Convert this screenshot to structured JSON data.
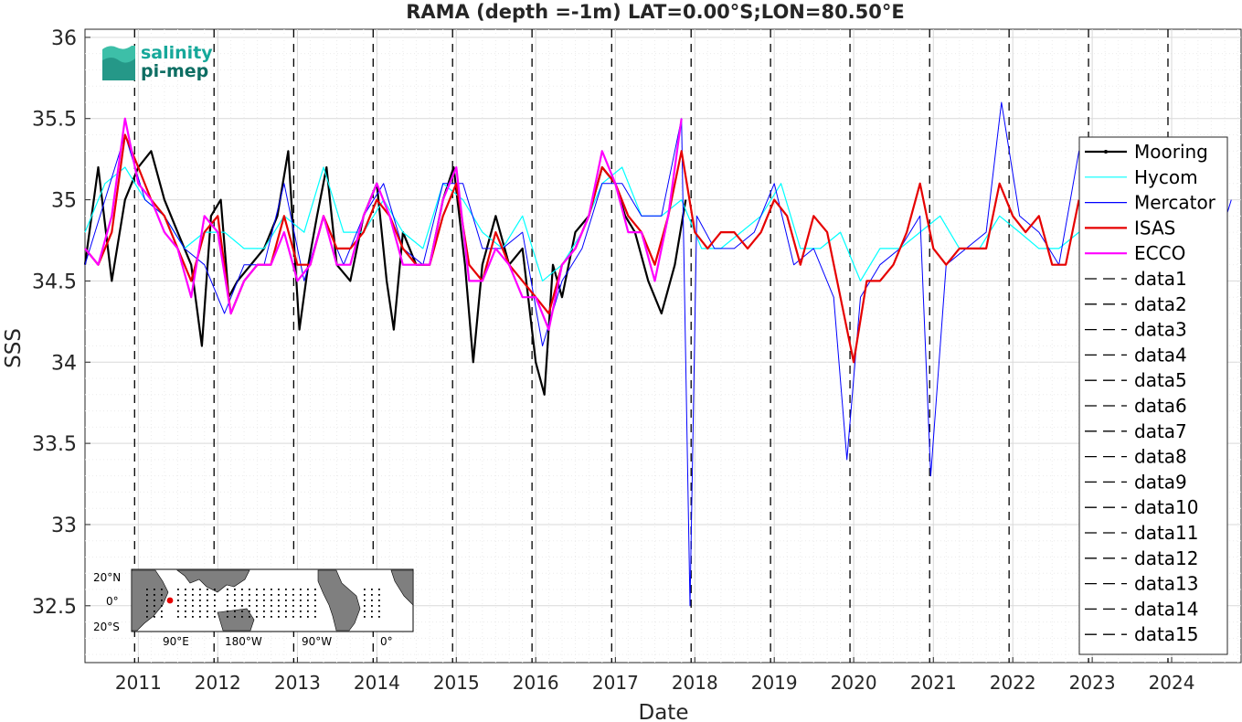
{
  "chart_data": {
    "type": "line",
    "title": "RAMA (depth =-1m) LAT=0.00°S;LON=80.50°E",
    "xlabel": "Date",
    "ylabel": "SSS",
    "xlim": [
      "2010-05-01",
      "2024-11-15"
    ],
    "ylim": [
      32.15,
      36.05
    ],
    "x_ticks": [
      "2011",
      "2012",
      "2013",
      "2014",
      "2015",
      "2016",
      "2017",
      "2018",
      "2019",
      "2020",
      "2021",
      "2022",
      "2023",
      "2024"
    ],
    "y_ticks": [
      "36",
      "35.5",
      "35",
      "34.5",
      "34",
      "33.5",
      "33",
      "32.5"
    ],
    "grid": true,
    "legend_position": "right",
    "vertical_markers": [
      {
        "name": "data1",
        "x": "2010-12-15"
      },
      {
        "name": "data2",
        "x": "2011-12-15"
      },
      {
        "name": "data3",
        "x": "2012-12-15"
      },
      {
        "name": "data4",
        "x": "2013-12-15"
      },
      {
        "name": "data5",
        "x": "2014-12-15"
      },
      {
        "name": "data6",
        "x": "2015-12-15"
      },
      {
        "name": "data7",
        "x": "2016-12-15"
      },
      {
        "name": "data8",
        "x": "2017-12-15"
      },
      {
        "name": "data9",
        "x": "2018-12-15"
      },
      {
        "name": "data10",
        "x": "2019-12-15"
      },
      {
        "name": "data11",
        "x": "2020-12-15"
      },
      {
        "name": "data12",
        "x": "2021-12-15"
      },
      {
        "name": "data13",
        "x": "2022-12-15"
      },
      {
        "name": "data14",
        "x": "2023-12-15"
      },
      {
        "name": "data15",
        "x": "2024-12-15"
      }
    ],
    "series": [
      {
        "name": "Mooring",
        "color": "#000000",
        "width": 2.2,
        "x": [
          "2010-05-01",
          "2010-07-01",
          "2010-09-01",
          "2010-11-01",
          "2011-01-01",
          "2011-03-01",
          "2011-05-01",
          "2011-07-01",
          "2011-09-01",
          "2011-10-20",
          "2011-12-01",
          "2012-01-15",
          "2012-02-20",
          "2012-04-01",
          "2012-06-01",
          "2012-08-01",
          "2012-10-01",
          "2012-11-20",
          "2013-01-10",
          "2013-02-20",
          "2013-04-01",
          "2013-05-15",
          "2013-07-01",
          "2013-09-01",
          "2013-11-01",
          "2014-01-01",
          "2014-02-15",
          "2014-03-20",
          "2014-05-01",
          "2014-07-01",
          "2014-09-01",
          "2014-11-01",
          "2014-12-20",
          "2015-02-10",
          "2015-03-20",
          "2015-05-01",
          "2015-07-01",
          "2015-09-01",
          "2015-11-01",
          "2016-01-01",
          "2016-02-10",
          "2016-03-20",
          "2016-05-01",
          "2016-07-01",
          "2016-09-01",
          "2016-11-01",
          "2017-01-01",
          "2017-02-15",
          "2017-04-01",
          "2017-06-01",
          "2017-08-01",
          "2017-10-01",
          "2017-11-20"
        ],
        "y": [
          34.6,
          35.2,
          34.5,
          35.0,
          35.2,
          35.3,
          35.0,
          34.8,
          34.6,
          34.1,
          34.9,
          35.0,
          34.4,
          34.5,
          34.6,
          34.7,
          34.9,
          35.3,
          34.2,
          34.6,
          34.9,
          35.2,
          34.6,
          34.5,
          34.9,
          35.1,
          34.5,
          34.2,
          34.8,
          34.6,
          34.6,
          35.0,
          35.2,
          34.6,
          34.0,
          34.6,
          34.9,
          34.6,
          34.7,
          34.0,
          33.8,
          34.6,
          34.4,
          34.8,
          34.9,
          35.2,
          35.1,
          34.9,
          34.8,
          34.5,
          34.3,
          34.6,
          35.0
        ]
      },
      {
        "name": "Hycom",
        "color": "#00ffff",
        "width": 1.2,
        "x": [
          "2010-05-01",
          "2010-08-01",
          "2010-11-01",
          "2011-02-01",
          "2011-05-01",
          "2011-08-01",
          "2011-11-01",
          "2012-02-01",
          "2012-05-01",
          "2012-08-01",
          "2012-11-01",
          "2013-02-01",
          "2013-05-01",
          "2013-08-01",
          "2013-11-01",
          "2014-02-01",
          "2014-05-01",
          "2014-08-01",
          "2014-11-01",
          "2015-02-01",
          "2015-05-01",
          "2015-08-01",
          "2015-11-01",
          "2016-02-01",
          "2016-05-01",
          "2016-08-01",
          "2016-11-01",
          "2017-02-01",
          "2017-05-01",
          "2017-08-01",
          "2017-11-01",
          "2018-02-01",
          "2018-05-01",
          "2018-08-01",
          "2018-11-01",
          "2019-02-01",
          "2019-05-01",
          "2019-08-01",
          "2019-11-01",
          "2020-02-01",
          "2020-05-01",
          "2020-08-01",
          "2020-11-01",
          "2021-02-01",
          "2021-05-01",
          "2021-08-01",
          "2021-11-01",
          "2022-02-01",
          "2022-05-01",
          "2022-08-01",
          "2022-11-01"
        ],
        "y": [
          34.8,
          35.1,
          35.2,
          35.0,
          34.9,
          34.7,
          34.8,
          34.8,
          34.7,
          34.7,
          34.9,
          34.8,
          35.2,
          34.8,
          34.8,
          35.0,
          34.8,
          34.7,
          35.1,
          35.0,
          34.8,
          34.7,
          34.9,
          34.5,
          34.6,
          34.8,
          35.1,
          35.2,
          34.9,
          34.9,
          35.0,
          34.7,
          34.7,
          34.8,
          34.9,
          35.1,
          34.7,
          34.7,
          34.8,
          34.5,
          34.7,
          34.7,
          34.8,
          34.9,
          34.7,
          34.7,
          34.9,
          34.8,
          34.7,
          34.7,
          34.8
        ]
      },
      {
        "name": "Mercator",
        "color": "#0000ff",
        "width": 1.0,
        "x": [
          "2010-05-01",
          "2010-08-01",
          "2010-11-01",
          "2011-02-01",
          "2011-05-01",
          "2011-08-01",
          "2011-11-01",
          "2012-02-01",
          "2012-05-01",
          "2012-08-01",
          "2012-11-01",
          "2013-02-01",
          "2013-05-01",
          "2013-08-01",
          "2013-11-01",
          "2014-02-01",
          "2014-05-01",
          "2014-08-01",
          "2014-11-01",
          "2015-02-01",
          "2015-05-01",
          "2015-08-01",
          "2015-11-01",
          "2016-02-01",
          "2016-05-01",
          "2016-08-01",
          "2016-11-01",
          "2017-02-01",
          "2017-05-01",
          "2017-08-01",
          "2017-11-01",
          "2017-12-10",
          "2018-01-10",
          "2018-04-01",
          "2018-07-01",
          "2018-10-01",
          "2019-01-01",
          "2019-04-01",
          "2019-07-01",
          "2019-10-01",
          "2019-12-01",
          "2020-02-01",
          "2020-05-01",
          "2020-08-01",
          "2020-11-01",
          "2020-12-20",
          "2021-03-01",
          "2021-06-01",
          "2021-09-01",
          "2021-11-10",
          "2022-02-01",
          "2022-05-01",
          "2022-08-01",
          "2022-11-01",
          "2023-01-01",
          "2023-04-01",
          "2023-07-01",
          "2023-10-01",
          "2024-01-01",
          "2024-04-01",
          "2024-07-01",
          "2024-10-01"
        ],
        "y": [
          34.6,
          35.0,
          35.4,
          35.0,
          34.9,
          34.7,
          34.6,
          34.3,
          34.6,
          34.6,
          35.1,
          34.5,
          34.9,
          34.6,
          34.9,
          35.1,
          34.7,
          34.6,
          35.1,
          35.1,
          34.7,
          34.7,
          34.8,
          34.1,
          34.5,
          34.7,
          35.1,
          35.1,
          34.9,
          34.9,
          35.5,
          32.5,
          34.9,
          34.7,
          34.7,
          34.8,
          35.1,
          34.6,
          34.7,
          34.4,
          33.4,
          34.4,
          34.6,
          34.7,
          34.9,
          33.3,
          34.6,
          34.7,
          34.8,
          35.6,
          34.9,
          34.8,
          34.6,
          35.3,
          34.9,
          34.6,
          34.7,
          34.6,
          34.7,
          34.6,
          34.6,
          35.0
        ]
      },
      {
        "name": "ISAS",
        "color": "#e60000",
        "width": 2.2,
        "x": [
          "2010-05-01",
          "2010-07-01",
          "2010-09-01",
          "2010-11-01",
          "2011-01-01",
          "2011-03-01",
          "2011-05-01",
          "2011-07-01",
          "2011-09-01",
          "2011-11-01",
          "2012-01-01",
          "2012-03-01",
          "2012-05-01",
          "2012-07-01",
          "2012-09-01",
          "2012-11-01",
          "2013-01-01",
          "2013-03-01",
          "2013-05-01",
          "2013-07-01",
          "2013-09-01",
          "2013-11-01",
          "2014-01-01",
          "2014-03-01",
          "2014-05-01",
          "2014-07-01",
          "2014-09-01",
          "2014-11-01",
          "2015-01-01",
          "2015-03-01",
          "2015-05-01",
          "2015-07-01",
          "2015-09-01",
          "2015-11-01",
          "2016-01-01",
          "2016-03-01",
          "2016-05-01",
          "2016-07-01",
          "2016-09-01",
          "2016-11-01",
          "2017-01-01",
          "2017-03-01",
          "2017-05-01",
          "2017-07-01",
          "2017-09-01",
          "2017-11-01",
          "2018-01-01",
          "2018-03-01",
          "2018-05-01",
          "2018-07-01",
          "2018-09-01",
          "2018-11-01",
          "2019-01-01",
          "2019-03-01",
          "2019-05-01",
          "2019-07-01",
          "2019-09-01",
          "2019-11-01",
          "2020-01-01",
          "2020-03-01",
          "2020-05-01",
          "2020-07-01",
          "2020-09-01",
          "2020-11-01",
          "2021-01-01",
          "2021-03-01",
          "2021-05-01",
          "2021-07-01",
          "2021-09-01",
          "2021-11-01",
          "2022-01-01",
          "2022-03-01",
          "2022-05-01",
          "2022-07-01",
          "2022-09-01",
          "2022-11-01"
        ],
        "y": [
          34.7,
          34.6,
          34.8,
          35.4,
          35.2,
          35.0,
          34.9,
          34.7,
          34.5,
          34.8,
          34.9,
          34.3,
          34.5,
          34.6,
          34.6,
          34.9,
          34.6,
          34.6,
          34.9,
          34.7,
          34.7,
          34.8,
          35.0,
          34.9,
          34.7,
          34.6,
          34.6,
          34.9,
          35.1,
          34.6,
          34.5,
          34.8,
          34.6,
          34.5,
          34.4,
          34.3,
          34.6,
          34.7,
          34.9,
          35.2,
          35.1,
          34.9,
          34.8,
          34.6,
          34.9,
          35.3,
          34.8,
          34.7,
          34.8,
          34.8,
          34.7,
          34.8,
          35.0,
          34.9,
          34.6,
          34.9,
          34.8,
          34.4,
          34.0,
          34.5,
          34.5,
          34.6,
          34.8,
          35.1,
          34.7,
          34.6,
          34.7,
          34.7,
          34.7,
          35.1,
          34.9,
          34.8,
          34.9,
          34.6,
          34.6,
          35.0
        ]
      },
      {
        "name": "ECCO",
        "color": "#ff00ff",
        "width": 2.2,
        "x": [
          "2010-05-01",
          "2010-07-01",
          "2010-09-01",
          "2010-11-01",
          "2011-01-01",
          "2011-03-01",
          "2011-05-01",
          "2011-07-01",
          "2011-09-01",
          "2011-11-01",
          "2012-01-01",
          "2012-03-01",
          "2012-05-01",
          "2012-07-01",
          "2012-09-01",
          "2012-11-01",
          "2013-01-01",
          "2013-03-01",
          "2013-05-01",
          "2013-07-01",
          "2013-09-01",
          "2013-11-01",
          "2014-01-01",
          "2014-03-01",
          "2014-05-01",
          "2014-07-01",
          "2014-09-01",
          "2014-11-01",
          "2015-01-01",
          "2015-03-01",
          "2015-05-01",
          "2015-07-01",
          "2015-09-01",
          "2015-11-01",
          "2016-01-01",
          "2016-03-01",
          "2016-05-01",
          "2016-07-01",
          "2016-09-01",
          "2016-11-01",
          "2017-01-01",
          "2017-03-01",
          "2017-05-01",
          "2017-07-01",
          "2017-09-01",
          "2017-11-01"
        ],
        "y": [
          34.7,
          34.6,
          34.9,
          35.5,
          35.1,
          35.0,
          34.8,
          34.7,
          34.4,
          34.9,
          34.8,
          34.3,
          34.5,
          34.6,
          34.6,
          34.8,
          34.5,
          34.6,
          34.9,
          34.6,
          34.6,
          34.9,
          35.1,
          34.9,
          34.6,
          34.6,
          34.6,
          35.0,
          35.2,
          34.5,
          34.5,
          34.7,
          34.6,
          34.4,
          34.4,
          34.2,
          34.6,
          34.7,
          34.9,
          35.3,
          35.1,
          34.8,
          34.8,
          34.5,
          34.9,
          35.5
        ]
      }
    ],
    "legend": [
      "Mooring",
      "Hycom",
      "Mercator",
      "ISAS",
      "ECCO",
      "data1",
      "data2",
      "data3",
      "data4",
      "data5",
      "data6",
      "data7",
      "data8",
      "data9",
      "data10",
      "data11",
      "data12",
      "data13",
      "data14",
      "data15"
    ]
  },
  "logo": {
    "line1": "salinity",
    "line2": "pi-mep",
    "color1": "#16a89a",
    "color2": "#0e6e63"
  },
  "inset_map": {
    "lat_labels": [
      "20°N",
      "0°",
      "20°S"
    ],
    "lon_labels": [
      "90°E",
      "180°W",
      "90°W",
      "0°"
    ],
    "station_color": "#e60000"
  }
}
